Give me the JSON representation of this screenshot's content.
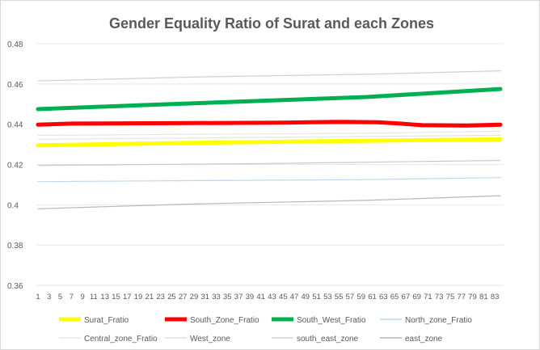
{
  "chart_data": {
    "type": "line",
    "title": "Gender Equality  Ratio of Surat and each Zones",
    "xlabel": "",
    "ylabel": "",
    "ylim": [
      0.36,
      0.48
    ],
    "yticks": [
      "0.36",
      "0.38",
      "0.4",
      "0.42",
      "0.44",
      "0.46",
      "0.48"
    ],
    "x_start": 1,
    "x_end": 84,
    "x_tick_labels": [
      "1",
      "3",
      "5",
      "7",
      "9",
      "11",
      "13",
      "15",
      "17",
      "19",
      "21",
      "23",
      "25",
      "27",
      "29",
      "31",
      "33",
      "35",
      "37",
      "39",
      "41",
      "43",
      "45",
      "47",
      "49",
      "51",
      "53",
      "55",
      "57",
      "59",
      "61",
      "63",
      "65",
      "67",
      "69",
      "71",
      "73",
      "75",
      "77",
      "79",
      "81",
      "83"
    ],
    "grid": "horizontal",
    "legend_position": "bottom",
    "series": [
      {
        "name": "Surat_Fratio",
        "color": "#ffff00",
        "points": [
          [
            1,
            0.4295
          ],
          [
            30,
            0.4308
          ],
          [
            60,
            0.4318
          ],
          [
            84,
            0.4325
          ]
        ]
      },
      {
        "name": "South_Zone_Fratio",
        "color": "#ff0000",
        "points": [
          [
            1,
            0.4398
          ],
          [
            7,
            0.4403
          ],
          [
            25,
            0.4405
          ],
          [
            45,
            0.4408
          ],
          [
            55,
            0.4412
          ],
          [
            62,
            0.441
          ],
          [
            66,
            0.4403
          ],
          [
            70,
            0.4395
          ],
          [
            78,
            0.4393
          ],
          [
            84,
            0.4398
          ]
        ]
      },
      {
        "name": "South_West_Fratio",
        "color": "#00b050",
        "points": [
          [
            1,
            0.4475
          ],
          [
            20,
            0.4495
          ],
          [
            40,
            0.4515
          ],
          [
            60,
            0.4535
          ],
          [
            84,
            0.4575
          ]
        ]
      },
      {
        "name": "North_zone_Fratio",
        "color": "#bdd7ee",
        "points": [
          [
            1,
            0.4115
          ],
          [
            30,
            0.412
          ],
          [
            60,
            0.4125
          ],
          [
            84,
            0.4135
          ]
        ]
      },
      {
        "name": "Central_zone_Fratio",
        "color": "#e7e6e6",
        "points": [
          [
            1,
            0.4345
          ],
          [
            30,
            0.435
          ],
          [
            60,
            0.4355
          ],
          [
            84,
            0.4365
          ]
        ]
      },
      {
        "name": "West_zone",
        "color": "#dedede",
        "points": [
          [
            1,
            0.4398
          ],
          [
            40,
            0.4402
          ],
          [
            84,
            0.4405
          ]
        ]
      },
      {
        "name": "south_east_zone",
        "color": "#d0d0d0",
        "points": [
          [
            1,
            0.4615
          ],
          [
            30,
            0.4635
          ],
          [
            60,
            0.4648
          ],
          [
            84,
            0.4665
          ]
        ]
      },
      {
        "name": "east_zone",
        "color": "#b7b7b7",
        "points": [
          [
            1,
            0.398
          ],
          [
            30,
            0.4005
          ],
          [
            60,
            0.4022
          ],
          [
            84,
            0.4045
          ]
        ]
      }
    ],
    "extra_lines": [
      {
        "color": "#c8c8c8",
        "points": [
          [
            1,
            0.4195
          ],
          [
            42,
            0.4205
          ],
          [
            84,
            0.422
          ]
        ]
      },
      {
        "color": "#e3e3e3",
        "points": [
          [
            1,
            0.4325
          ],
          [
            42,
            0.4335
          ],
          [
            84,
            0.4345
          ]
        ]
      }
    ]
  }
}
